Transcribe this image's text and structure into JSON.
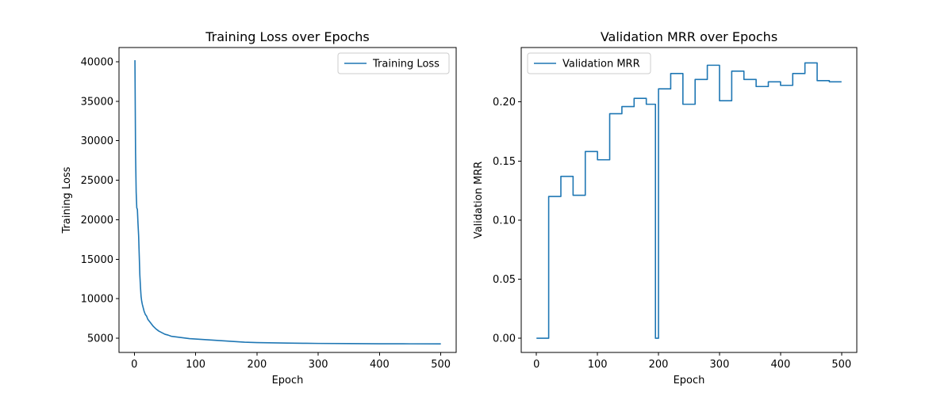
{
  "colors": {
    "series": "#1f77b4",
    "axis": "#000000",
    "legend_border": "#cccccc"
  },
  "chart_data": [
    {
      "type": "line",
      "title": "Training Loss over Epochs",
      "xlabel": "Epoch",
      "ylabel": "Training Loss",
      "xlim": [
        -25,
        525
      ],
      "ylim": [
        3200,
        41800
      ],
      "xticks": [
        0,
        100,
        200,
        300,
        400,
        500
      ],
      "yticks": [
        5000,
        10000,
        15000,
        20000,
        25000,
        30000,
        35000,
        40000
      ],
      "grid": false,
      "legend_position": "top-right",
      "series": [
        {
          "name": "Training Loss",
          "x": [
            1,
            2,
            3,
            4,
            5,
            6,
            7,
            8,
            9,
            10,
            11,
            12,
            13,
            14,
            16,
            18,
            20,
            22,
            25,
            28,
            31,
            35,
            40,
            45,
            50,
            55,
            60,
            70,
            80,
            90,
            100,
            110,
            120,
            130,
            140,
            150,
            160,
            170,
            180,
            200,
            220,
            250,
            280,
            300,
            350,
            400,
            450,
            500
          ],
          "y": [
            40200,
            28500,
            23500,
            21500,
            21300,
            19500,
            18000,
            15500,
            13000,
            11500,
            10300,
            9700,
            9300,
            9000,
            8400,
            8000,
            7800,
            7400,
            7100,
            6800,
            6500,
            6200,
            5900,
            5700,
            5500,
            5400,
            5250,
            5150,
            5050,
            4950,
            4900,
            4850,
            4800,
            4750,
            4700,
            4650,
            4600,
            4550,
            4500,
            4450,
            4420,
            4380,
            4360,
            4340,
            4320,
            4300,
            4290,
            4280
          ]
        }
      ]
    },
    {
      "type": "line",
      "title": "Validation MRR over Epochs",
      "xlabel": "Epoch",
      "ylabel": "Validation MRR",
      "xlim": [
        -25,
        525
      ],
      "ylim": [
        -0.012,
        0.246
      ],
      "xticks": [
        0,
        100,
        200,
        300,
        400,
        500
      ],
      "yticks": [
        0.0,
        0.05,
        0.1,
        0.15,
        0.2
      ],
      "ytick_labels": [
        "0.00",
        "0.05",
        "0.10",
        "0.15",
        "0.20"
      ],
      "grid": false,
      "legend_position": "top-left",
      "series": [
        {
          "name": "Validation MRR",
          "x": [
            0,
            20,
            20,
            40,
            40,
            60,
            60,
            80,
            80,
            100,
            100,
            120,
            120,
            140,
            140,
            160,
            160,
            180,
            180,
            195,
            195,
            200,
            200,
            220,
            220,
            240,
            240,
            260,
            260,
            280,
            280,
            300,
            300,
            320,
            320,
            340,
            340,
            360,
            360,
            380,
            380,
            400,
            400,
            420,
            420,
            440,
            440,
            460,
            460,
            480,
            480,
            500
          ],
          "y": [
            0.0,
            0.0,
            0.12,
            0.12,
            0.137,
            0.137,
            0.121,
            0.121,
            0.158,
            0.158,
            0.151,
            0.151,
            0.19,
            0.19,
            0.196,
            0.196,
            0.203,
            0.203,
            0.198,
            0.198,
            0.0,
            0.0,
            0.211,
            0.211,
            0.224,
            0.224,
            0.198,
            0.198,
            0.219,
            0.219,
            0.231,
            0.231,
            0.201,
            0.201,
            0.226,
            0.226,
            0.219,
            0.219,
            0.213,
            0.213,
            0.217,
            0.217,
            0.214,
            0.214,
            0.224,
            0.224,
            0.233,
            0.233,
            0.218,
            0.218,
            0.217,
            0.217
          ]
        }
      ]
    }
  ]
}
